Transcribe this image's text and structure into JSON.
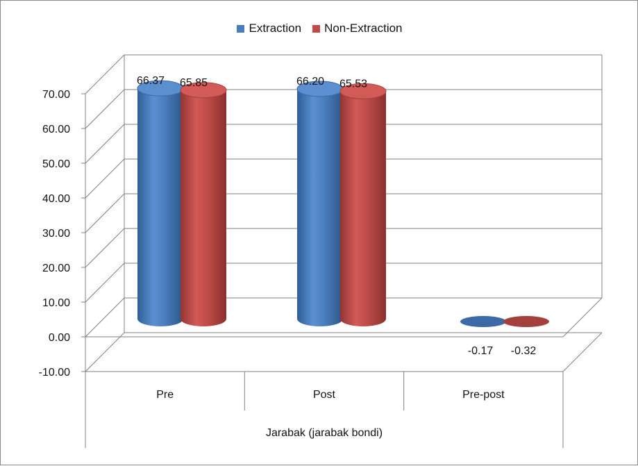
{
  "chart_data": {
    "type": "bar",
    "title": "",
    "xlabel": "Jarabak (jarabak bondi)",
    "ylabel": "",
    "categories": [
      "Pre",
      "Post",
      "Pre-post"
    ],
    "series": [
      {
        "name": "Extraction",
        "values": [
          66.37,
          66.2,
          -0.17
        ],
        "labels": [
          "66.37",
          "66.20",
          "-0.17"
        ],
        "color": "#4a7ebb"
      },
      {
        "name": "Non-Extraction",
        "values": [
          65.85,
          65.53,
          -0.32
        ],
        "labels": [
          "65.85",
          "65.53",
          "-0.32"
        ],
        "color": "#be4b48"
      }
    ],
    "ylim": [
      -10,
      70
    ],
    "yticks": [
      "-10.00",
      "0.00",
      "10.00",
      "20.00",
      "30.00",
      "40.00",
      "50.00",
      "60.00",
      "70.00"
    ],
    "grid": true,
    "legend_position": "top"
  }
}
